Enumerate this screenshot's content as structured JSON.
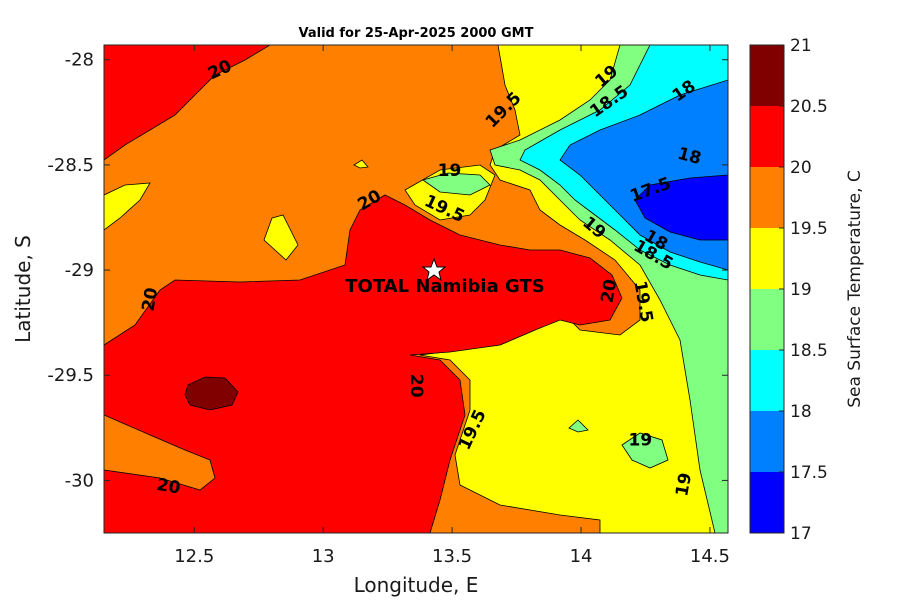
{
  "chart_data": {
    "type": "contourf",
    "title": "Valid for 25-Apr-2025 2000 GMT",
    "xlabel": "Longitude, E",
    "ylabel": "Latitude, S",
    "xlim": [
      12.15,
      14.57
    ],
    "ylim": [
      -30.25,
      -27.93
    ],
    "x_ticks": [
      12.5,
      13,
      13.5,
      14,
      14.5
    ],
    "x_tick_labels": [
      "12.5",
      "13",
      "13.5",
      "14",
      "14.5"
    ],
    "y_ticks": [
      -28,
      -28.5,
      -29,
      -29.5,
      -30
    ],
    "y_tick_labels": [
      "-28",
      "-28.5",
      "-29",
      "-29.5",
      "-30"
    ],
    "colorbar": {
      "label": "Sea Surface Temperature, C",
      "levels": [
        17,
        17.5,
        18,
        18.5,
        19,
        19.5,
        20,
        20.5,
        21
      ],
      "tick_labels": [
        "17",
        "17.5",
        "18",
        "18.5",
        "19",
        "19.5",
        "20",
        "20.5",
        "21"
      ],
      "colors": [
        "#0000ff",
        "#0080ff",
        "#00ffff",
        "#80ff80",
        "#ffff00",
        "#ff8000",
        "#ff0000",
        "#800000"
      ]
    },
    "contour_labels": [
      {
        "text": "20",
        "x": 12.6,
        "y": -28.05,
        "angle": -25
      },
      {
        "text": "19.5",
        "x": 13.7,
        "y": -28.24,
        "angle": -45
      },
      {
        "text": "19",
        "x": 14.1,
        "y": -28.08,
        "angle": -40
      },
      {
        "text": "18.5",
        "x": 14.11,
        "y": -28.2,
        "angle": -35
      },
      {
        "text": "18",
        "x": 14.4,
        "y": -28.15,
        "angle": -35
      },
      {
        "text": "18",
        "x": 14.42,
        "y": -28.46,
        "angle": 15
      },
      {
        "text": "17.5",
        "x": 14.27,
        "y": -28.62,
        "angle": -20
      },
      {
        "text": "19",
        "x": 13.49,
        "y": -28.53,
        "angle": 0
      },
      {
        "text": "20",
        "x": 13.18,
        "y": -28.67,
        "angle": -30
      },
      {
        "text": "19.5",
        "x": 13.47,
        "y": -28.71,
        "angle": 25
      },
      {
        "text": "19",
        "x": 14.05,
        "y": -28.8,
        "angle": 40
      },
      {
        "text": "18",
        "x": 14.29,
        "y": -28.86,
        "angle": 30
      },
      {
        "text": "18.5",
        "x": 14.28,
        "y": -28.93,
        "angle": 30
      },
      {
        "text": "20",
        "x": 12.33,
        "y": -29.14,
        "angle": -80
      },
      {
        "text": "20",
        "x": 14.11,
        "y": -29.1,
        "angle": -80
      },
      {
        "text": "19.5",
        "x": 14.24,
        "y": -29.15,
        "angle": 80
      },
      {
        "text": "20",
        "x": 13.36,
        "y": -29.55,
        "angle": 90
      },
      {
        "text": "19.5",
        "x": 13.58,
        "y": -29.76,
        "angle": -65
      },
      {
        "text": "19",
        "x": 14.23,
        "y": -29.81,
        "angle": 0
      },
      {
        "text": "19",
        "x": 14.4,
        "y": -30.02,
        "angle": -80
      },
      {
        "text": "20",
        "x": 12.4,
        "y": -30.03,
        "angle": 10
      }
    ],
    "marker": {
      "label": "TOTAL Namibia GTS",
      "lon": 13.43,
      "lat": -29.0,
      "symbol": "star"
    }
  }
}
